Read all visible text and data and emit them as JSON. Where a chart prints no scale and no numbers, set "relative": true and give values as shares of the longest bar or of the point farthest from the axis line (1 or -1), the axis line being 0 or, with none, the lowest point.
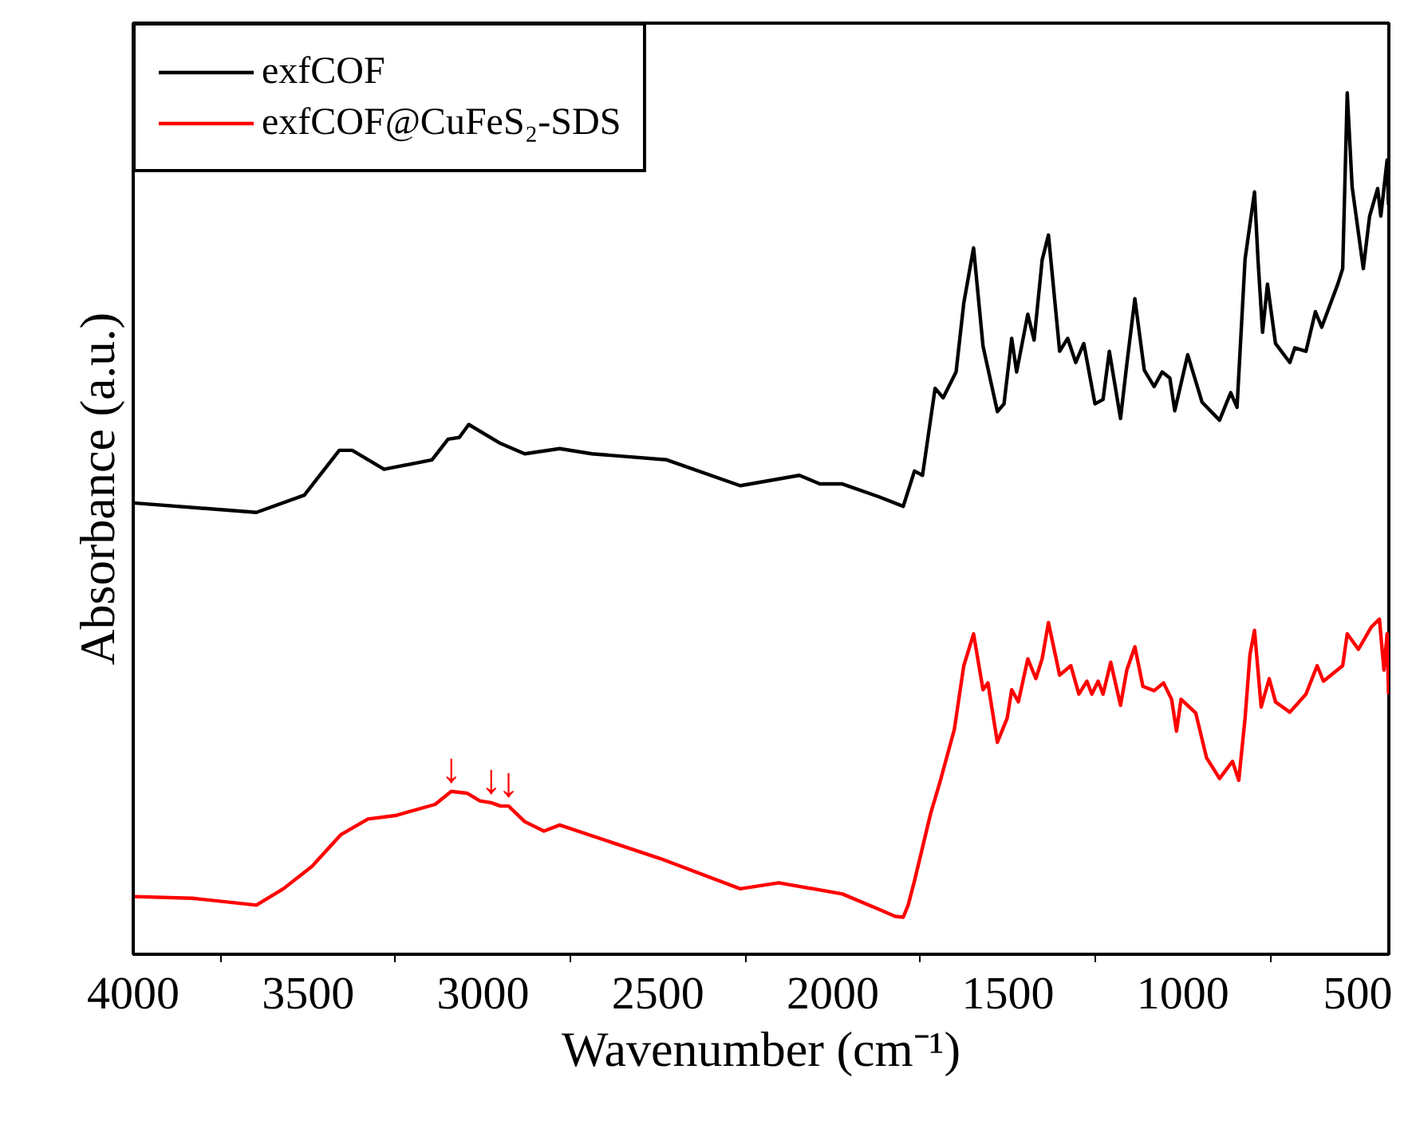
{
  "chart_data": {
    "type": "line",
    "relative": true,
    "xlabel": "Wavenumber (cm⁻¹)",
    "ylabel": "Absorbance (a.u.)",
    "xlim": [
      4000,
      411
    ],
    "xticks": [
      4000,
      3500,
      3000,
      2500,
      2000,
      1500,
      1000,
      500
    ],
    "tick_labels": "x",
    "grid": false,
    "legend": "top left",
    "series": [
      {
        "name": "exfCOF",
        "color": "#000000",
        "x": [
          4000,
          3648,
          3511,
          3411,
          3374,
          3283,
          3146,
          3100,
          3068,
          3041,
          2950,
          2881,
          2781,
          2689,
          2475,
          2265,
          2096,
          2037,
          1973,
          1868,
          1799,
          1767,
          1744,
          1708,
          1685,
          1648,
          1626,
          1598,
          1571,
          1530,
          1511,
          1489,
          1475,
          1443,
          1425,
          1402,
          1384,
          1352,
          1329,
          1306,
          1283,
          1251,
          1228,
          1210,
          1178,
          1160,
          1137,
          1110,
          1082,
          1059,
          1037,
          1023,
          986,
          945,
          895,
          863,
          845,
          822,
          795,
          785,
          772,
          758,
          735,
          694,
          680,
          648,
          621,
          603,
          557,
          543,
          530,
          516,
          484,
          466,
          443,
          434,
          416,
          412
        ],
        "values": [
          0.524,
          0.513,
          0.533,
          0.585,
          0.585,
          0.563,
          0.574,
          0.598,
          0.6,
          0.615,
          0.593,
          0.581,
          0.587,
          0.581,
          0.574,
          0.544,
          0.556,
          0.546,
          0.546,
          0.531,
          0.52,
          0.561,
          0.556,
          0.657,
          0.646,
          0.676,
          0.756,
          0.82,
          0.706,
          0.63,
          0.639,
          0.715,
          0.676,
          0.743,
          0.713,
          0.806,
          0.835,
          0.7,
          0.715,
          0.687,
          0.709,
          0.639,
          0.644,
          0.7,
          0.622,
          0.685,
          0.761,
          0.678,
          0.659,
          0.676,
          0.669,
          0.631,
          0.696,
          0.641,
          0.62,
          0.652,
          0.635,
          0.807,
          0.885,
          0.806,
          0.722,
          0.778,
          0.709,
          0.687,
          0.704,
          0.7,
          0.746,
          0.728,
          0.778,
          0.796,
          1.0,
          0.891,
          0.796,
          0.857,
          0.889,
          0.857,
          0.922,
          0.87
        ]
      },
      {
        "name": "exfCOF@CuFeS₂-SDS",
        "color": "#ff0000",
        "x": [
          4000,
          3831,
          3648,
          3571,
          3489,
          3406,
          3329,
          3251,
          3137,
          3091,
          3046,
          3009,
          2977,
          2950,
          2927,
          2881,
          2826,
          2781,
          2493,
          2265,
          2155,
          1973,
          1868,
          1822,
          1799,
          1785,
          1767,
          1721,
          1694,
          1653,
          1626,
          1598,
          1571,
          1557,
          1530,
          1502,
          1489,
          1470,
          1443,
          1420,
          1402,
          1384,
          1352,
          1320,
          1297,
          1274,
          1260,
          1242,
          1228,
          1206,
          1178,
          1160,
          1137,
          1114,
          1082,
          1055,
          1032,
          1018,
          1005,
          963,
          932,
          895,
          858,
          840,
          822,
          808,
          795,
          776,
          753,
          735,
          694,
          648,
          616,
          598,
          543,
          530,
          498,
          461,
          438,
          425,
          416,
          412
        ],
        "values": [
          0.067,
          0.065,
          0.057,
          0.076,
          0.102,
          0.139,
          0.157,
          0.161,
          0.174,
          0.189,
          0.187,
          0.178,
          0.176,
          0.172,
          0.172,
          0.154,
          0.143,
          0.15,
          0.111,
          0.076,
          0.083,
          0.07,
          0.052,
          0.044,
          0.043,
          0.057,
          0.085,
          0.163,
          0.2,
          0.261,
          0.335,
          0.372,
          0.307,
          0.315,
          0.246,
          0.274,
          0.307,
          0.293,
          0.343,
          0.32,
          0.343,
          0.385,
          0.324,
          0.335,
          0.302,
          0.317,
          0.302,
          0.317,
          0.302,
          0.339,
          0.289,
          0.33,
          0.357,
          0.311,
          0.306,
          0.315,
          0.296,
          0.259,
          0.296,
          0.28,
          0.228,
          0.204,
          0.224,
          0.202,
          0.274,
          0.348,
          0.376,
          0.287,
          0.32,
          0.293,
          0.281,
          0.302,
          0.335,
          0.317,
          0.335,
          0.372,
          0.354,
          0.38,
          0.389,
          0.33,
          0.372,
          0.302
        ]
      }
    ],
    "annotations": [
      {
        "text": "↓",
        "x": 3091,
        "y": 0.189
      },
      {
        "text": "↓",
        "x": 2977,
        "y": 0.176
      },
      {
        "text": "↓",
        "x": 2927,
        "y": 0.172
      }
    ]
  }
}
